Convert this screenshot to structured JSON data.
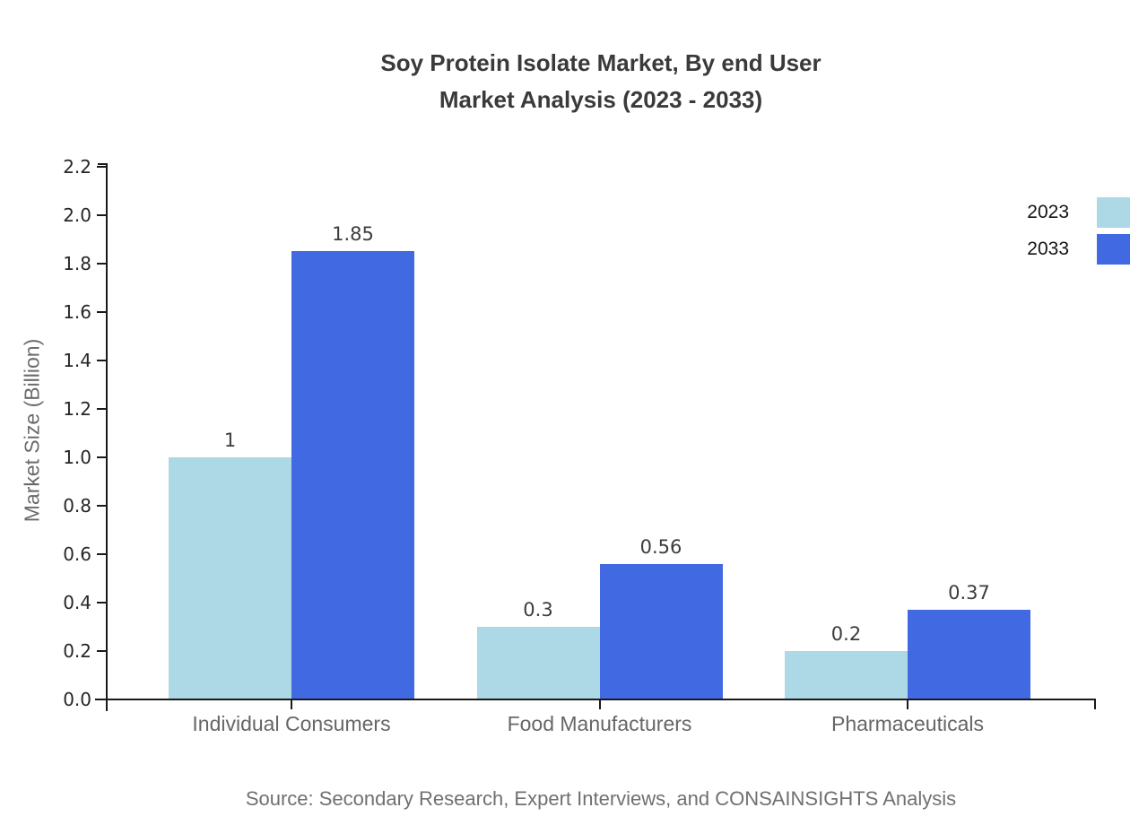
{
  "chart_data": {
    "type": "bar",
    "title": "Soy Protein Isolate Market, By end User Market Analysis (2023 - 2033)",
    "title_lines": [
      "Soy Protein Isolate Market, By end User",
      "Market Analysis (2023 - 2033)"
    ],
    "categories": [
      "Individual Consumers",
      "Food Manufacturers",
      "Pharmaceuticals"
    ],
    "series": [
      {
        "name": "2023",
        "color": "#add8e6",
        "values": [
          1,
          0.3,
          0.2
        ],
        "value_labels": [
          "1",
          "0.3",
          "0.2"
        ]
      },
      {
        "name": "2033",
        "color": "#4169e1",
        "values": [
          1.85,
          0.56,
          0.37
        ],
        "value_labels": [
          "1.85",
          "0.56",
          "0.37"
        ]
      }
    ],
    "xlabel": "",
    "ylabel": "Market Size (Billion)",
    "ylim": [
      0,
      2.2
    ],
    "yticks": [
      "0.0",
      "0.2",
      "0.4",
      "0.6",
      "0.8",
      "1.0",
      "1.2",
      "1.4",
      "1.6",
      "1.8",
      "2.0",
      "2.2"
    ],
    "grid": false,
    "legend_position": "top-right",
    "source": "Source: Secondary Research, Expert Interviews, and CONSAINSIGHTS Analysis"
  }
}
